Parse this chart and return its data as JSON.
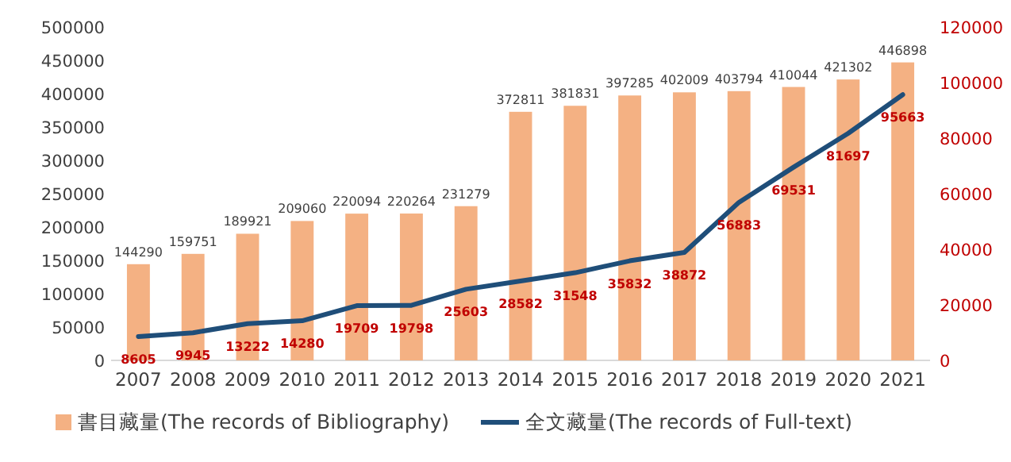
{
  "chart_data": {
    "type": "bar",
    "categories": [
      "2007",
      "2008",
      "2009",
      "2010",
      "2011",
      "2012",
      "2013",
      "2014",
      "2015",
      "2016",
      "2017",
      "2018",
      "2019",
      "2020",
      "2021"
    ],
    "series": [
      {
        "name": "書目藏量(The records of Bibliography)",
        "color": "#f4b183",
        "values": [
          144290,
          159751,
          189921,
          209060,
          220094,
          220264,
          231279,
          372811,
          381831,
          397285,
          402009,
          403794,
          410044,
          421302,
          446898
        ]
      },
      {
        "name": "全文藏量(The records of Full-text)",
        "type": "line",
        "axis": "y2",
        "color": "#1f4e79",
        "values": [
          8605,
          9945,
          13222,
          14280,
          19709,
          19798,
          25603,
          28582,
          31548,
          35832,
          38872,
          56883,
          69531,
          81697,
          95663
        ]
      }
    ],
    "ylim": [
      0,
      500000
    ],
    "yticks": [
      0,
      50000,
      100000,
      150000,
      200000,
      250000,
      300000,
      350000,
      400000,
      450000,
      500000
    ],
    "y2lim": [
      0,
      120000
    ],
    "y2ticks": [
      0,
      20000,
      40000,
      60000,
      80000,
      100000,
      120000
    ],
    "data_labels": true,
    "legend": "bottom"
  }
}
